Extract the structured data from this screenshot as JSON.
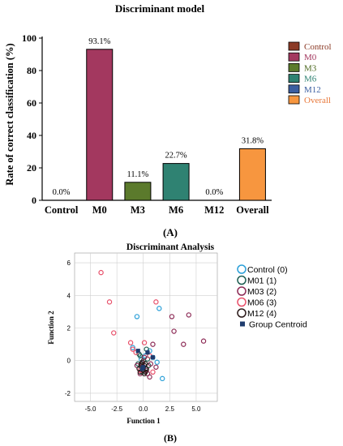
{
  "chart_data": [
    {
      "type": "bar",
      "panel_label": "(A)",
      "title": "Discriminant model",
      "ylabel": "Rate of correct classification (%)",
      "xlabel": "",
      "ylim": [
        0,
        100
      ],
      "yticks": [
        0,
        20,
        40,
        60,
        80,
        100
      ],
      "categories": [
        "Control",
        "M0",
        "M3",
        "M6",
        "M12",
        "Overall"
      ],
      "values": [
        0.0,
        93.1,
        11.1,
        22.7,
        0.0,
        31.8
      ],
      "value_labels": [
        "0.0%",
        "93.1%",
        "11.1%",
        "22.7%",
        "0.0%",
        "31.8%"
      ],
      "colors": [
        "#8b3a26",
        "#a3385f",
        "#5b7a2c",
        "#2f8272",
        "#3b5ea0",
        "#f7963f"
      ],
      "label_colors": [
        "#8b3a26",
        "#a3385f",
        "#4e6a22",
        "#2f8272",
        "#3b5ea0",
        "#e8783a"
      ],
      "legend": {
        "placement": "right",
        "entries": [
          "Control",
          "M0",
          "M3",
          "M6",
          "M12",
          "Overall"
        ]
      },
      "grid": false
    },
    {
      "type": "scatter",
      "panel_label": "(B)",
      "title": "Discriminant Analysis",
      "xlabel": "Function 1",
      "ylabel": "Function 2",
      "xlim": [
        -6.5,
        7
      ],
      "ylim": [
        -2.5,
        6.6
      ],
      "xticks": [
        -5.0,
        -2.5,
        0.0,
        2.5,
        5.0
      ],
      "xtick_labels": [
        "-5.0",
        "-2.5",
        "0.0",
        "2.5",
        "5.0"
      ],
      "yticks": [
        -2,
        0,
        2,
        4,
        6
      ],
      "grid": true,
      "legend": {
        "placement": "right",
        "entries": [
          "Control (0)",
          "M01 (1)",
          "M03 (2)",
          "M06 (3)",
          "M12 (4)",
          "Group Centroid"
        ]
      },
      "series": [
        {
          "name": "Control (0)",
          "color": "#2a9fd8",
          "points": [
            [
              -0.6,
              2.7
            ],
            [
              1.5,
              3.2
            ],
            [
              1.3,
              -0.1
            ],
            [
              1.8,
              -1.1
            ],
            [
              -1.0,
              0.8
            ],
            [
              0.2,
              0.3
            ],
            [
              0.6,
              0.6
            ],
            [
              -0.2,
              0.1
            ],
            [
              0.9,
              0.2
            ]
          ]
        },
        {
          "name": "M01 (1)",
          "color": "#1e5e52",
          "points": [
            [
              -0.3,
              0.3
            ],
            [
              0.3,
              0.7
            ],
            [
              -0.5,
              -0.2
            ],
            [
              0.2,
              -0.5
            ],
            [
              -0.1,
              -0.7
            ],
            [
              0.5,
              -0.3
            ],
            [
              -0.2,
              -0.4
            ],
            [
              0.0,
              0.0
            ],
            [
              0.4,
              0.1
            ],
            [
              -0.4,
              0.4
            ]
          ]
        },
        {
          "name": "M03 (2)",
          "color": "#8c2a55",
          "points": [
            [
              4.3,
              2.8
            ],
            [
              2.7,
              2.7
            ],
            [
              2.9,
              1.8
            ],
            [
              5.7,
              1.2
            ],
            [
              3.8,
              1.0
            ],
            [
              0.9,
              1.0
            ],
            [
              0.6,
              -1.0
            ],
            [
              1.2,
              -0.4
            ],
            [
              -0.1,
              -0.2
            ],
            [
              0.3,
              -0.6
            ],
            [
              -0.3,
              -0.8
            ],
            [
              0.1,
              0.2
            ],
            [
              0.7,
              -0.2
            ],
            [
              -0.6,
              -0.3
            ],
            [
              0.4,
              -0.8
            ]
          ]
        },
        {
          "name": "M06 (3)",
          "color": "#e8506a",
          "points": [
            [
              -4.0,
              5.4
            ],
            [
              -3.2,
              3.6
            ],
            [
              1.2,
              3.6
            ],
            [
              -2.8,
              1.7
            ],
            [
              -1.2,
              1.1
            ],
            [
              -1.0,
              0.7
            ],
            [
              0.1,
              1.1
            ],
            [
              -0.7,
              0.5
            ],
            [
              -0.3,
              -0.6
            ],
            [
              0.6,
              0.3
            ],
            [
              0.9,
              -0.7
            ],
            [
              -0.1,
              -0.1
            ]
          ]
        },
        {
          "name": "M12 (4)",
          "color": "#2b1a1a",
          "points": [
            [
              -0.2,
              -0.3
            ],
            [
              0.0,
              -0.6
            ],
            [
              0.2,
              -0.2
            ],
            [
              -0.4,
              -0.5
            ],
            [
              0.1,
              -0.8
            ],
            [
              -0.1,
              -0.1
            ],
            [
              0.3,
              -0.5
            ],
            [
              -0.3,
              -0.7
            ],
            [
              0.0,
              -0.4
            ],
            [
              0.2,
              -0.7
            ],
            [
              -0.2,
              -0.2
            ],
            [
              0.1,
              -0.3
            ]
          ]
        },
        {
          "name": "Group Centroid",
          "color": "#1f3c6e",
          "marker": "square",
          "points": [
            [
              -0.5,
              0.6
            ],
            [
              0.4,
              0.5
            ],
            [
              0.9,
              0.2
            ],
            [
              0.0,
              -0.4
            ],
            [
              -0.1,
              -0.5
            ]
          ]
        }
      ]
    }
  ]
}
